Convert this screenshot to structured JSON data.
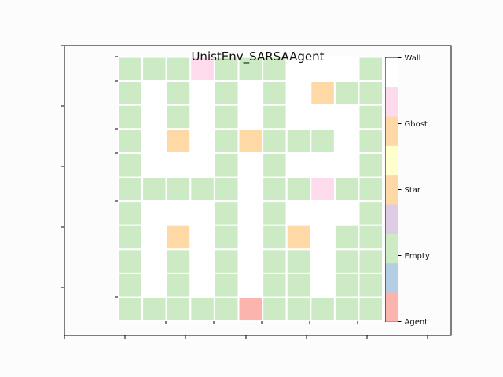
{
  "chart_data": {
    "type": "heatmap",
    "title": "UnistEnv_SARSAAgent",
    "xlabel": "",
    "ylabel": "",
    "x_tick_labels": [],
    "y_tick_labels": [],
    "grid": false,
    "legend": "colorbar-right",
    "colorbar": {
      "colors": [
        "#fbb4ae",
        "#b3cde3",
        "#ccebc5",
        "#decbe4",
        "#fed9a6",
        "#ffffcc",
        "#fed9a6",
        "#fddaec",
        "#ffffff"
      ],
      "labels": [
        {
          "text": "Agent",
          "value": 0
        },
        {
          "text": "Empty",
          "value": 2
        },
        {
          "text": "Star",
          "value": 4
        },
        {
          "text": "Ghost",
          "value": 6
        },
        {
          "text": "Wall",
          "value": 8
        }
      ]
    },
    "cell_codes": {
      "W": 8,
      "E": 2,
      "G": 7,
      "S": 4,
      "A": 0
    },
    "grid_rows": [
      "EEEGEEEWWWE",
      "EWEWEWEWSEE",
      "EWEWEWEWWWE",
      "EWSWESEEEWE",
      "EWWWEWEWWWE",
      "EEEEEWEEGEE",
      "EWWWEWEWWWE",
      "EWSWEWESWEE",
      "EWEWEWEEWEE",
      "EWEWEWEEWEE",
      "EEEEEAEEEEE"
    ]
  }
}
